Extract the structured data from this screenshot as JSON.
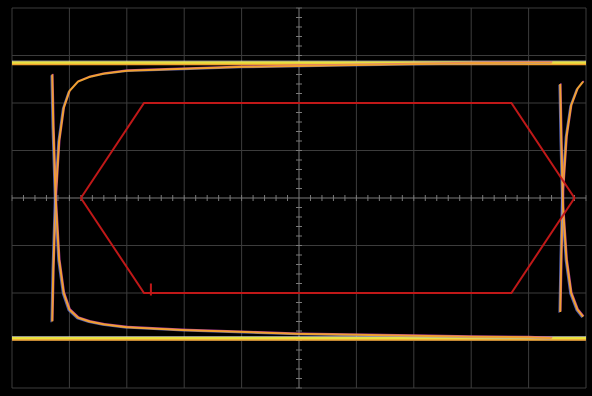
{
  "chart_data": {
    "type": "line",
    "title": "",
    "xlabel": "",
    "ylabel": "",
    "grid": true,
    "x_divisions": 10,
    "y_divisions": 8,
    "xlim": [
      0,
      10
    ],
    "ylim": [
      -4,
      4
    ],
    "colors": {
      "background": "#000000",
      "grid": "#3c3c3c",
      "ticks": "#7a7a7a",
      "trace_main": "#f0a030",
      "trace_rail": "#e8e040",
      "trace_accent": "#d84cc0",
      "trace_jitter": "#7a8cff",
      "mask": "#c01818"
    },
    "eye_mask": {
      "name": "",
      "polygon": [
        [
          1.2,
          0
        ],
        [
          2.3,
          2.0
        ],
        [
          8.7,
          2.0
        ],
        [
          9.8,
          0
        ],
        [
          8.7,
          -2.0
        ],
        [
          2.3,
          -2.0
        ]
      ],
      "marker": [
        2.42,
        -1.8
      ]
    },
    "series": [
      {
        "name": "",
        "role": "high-rail",
        "x": [
          0,
          10
        ],
        "y": [
          2.85,
          2.85
        ]
      },
      {
        "name": "",
        "role": "low-rail",
        "x": [
          0,
          10
        ],
        "y": [
          -2.95,
          -2.95
        ]
      },
      {
        "name": "",
        "role": "rising-edge",
        "x": [
          0.7,
          0.72,
          0.76,
          0.82,
          0.9,
          1.0,
          1.15,
          1.35,
          1.6,
          2.0,
          3.0,
          4.0,
          5.0,
          6.0,
          7.0,
          8.0,
          9.0,
          9.4
        ],
        "y": [
          -2.6,
          -1.5,
          0.0,
          1.2,
          1.9,
          2.25,
          2.45,
          2.55,
          2.62,
          2.68,
          2.72,
          2.76,
          2.78,
          2.8,
          2.82,
          2.84,
          2.85,
          2.85
        ]
      },
      {
        "name": "",
        "role": "falling-edge",
        "x": [
          0.7,
          0.72,
          0.76,
          0.82,
          0.9,
          1.0,
          1.15,
          1.35,
          1.6,
          2.0,
          3.0,
          4.0,
          5.0,
          6.0,
          7.0,
          8.0,
          9.0,
          9.4
        ],
        "y": [
          2.6,
          1.5,
          0.0,
          -1.3,
          -2.0,
          -2.35,
          -2.52,
          -2.6,
          -2.66,
          -2.72,
          -2.78,
          -2.82,
          -2.86,
          -2.88,
          -2.9,
          -2.92,
          -2.93,
          -2.95
        ]
      },
      {
        "name": "",
        "role": "right-rising-edge",
        "x": [
          9.55,
          9.57,
          9.6,
          9.66,
          9.74,
          9.85,
          9.95
        ],
        "y": [
          -2.4,
          -1.2,
          0.2,
          1.3,
          1.95,
          2.3,
          2.45
        ]
      },
      {
        "name": "",
        "role": "right-falling-edge",
        "x": [
          9.55,
          9.57,
          9.6,
          9.66,
          9.74,
          9.85,
          9.95
        ],
        "y": [
          2.4,
          1.2,
          -0.2,
          -1.3,
          -2.0,
          -2.35,
          -2.5
        ]
      }
    ]
  }
}
